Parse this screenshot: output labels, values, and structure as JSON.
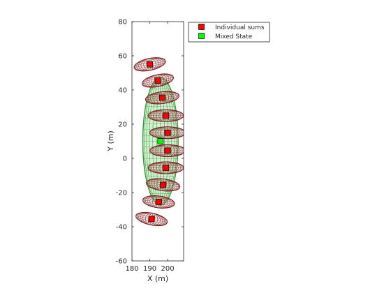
{
  "chart_data": {
    "type": "scatter",
    "title": "",
    "xlabel": "X (m)",
    "ylabel": "Y (m)",
    "xlim": [
      180,
      209
    ],
    "ylim": [
      -60,
      80
    ],
    "xticks": [
      180,
      190,
      200
    ],
    "yticks": [
      -60,
      -40,
      -20,
      0,
      20,
      40,
      60,
      80
    ],
    "grid": false,
    "legend_position": "top-right (outside)",
    "series": [
      {
        "name": "Individual sums",
        "marker": "square",
        "color": "#ff0000",
        "ellipse_edge_color": "#7a1e1e",
        "points": [
          {
            "x": 190.0,
            "y": 55.0,
            "rx": 9.0,
            "ry": 3.5
          },
          {
            "x": 194.5,
            "y": 45.5,
            "rx": 9.0,
            "ry": 3.5
          },
          {
            "x": 197.0,
            "y": 35.5,
            "rx": 9.5,
            "ry": 3.5
          },
          {
            "x": 199.0,
            "y": 25.0,
            "rx": 10.0,
            "ry": 3.5
          },
          {
            "x": 200.0,
            "y": 15.0,
            "rx": 10.0,
            "ry": 3.5
          },
          {
            "x": 200.0,
            "y": 4.5,
            "rx": 10.0,
            "ry": 3.5
          },
          {
            "x": 199.0,
            "y": -5.5,
            "rx": 10.0,
            "ry": 3.5
          },
          {
            "x": 197.5,
            "y": -15.5,
            "rx": 9.5,
            "ry": 3.5
          },
          {
            "x": 195.0,
            "y": -25.5,
            "rx": 9.0,
            "ry": 3.5
          },
          {
            "x": 191.0,
            "y": -35.5,
            "rx": 9.0,
            "ry": 3.5
          }
        ]
      },
      {
        "name": "Mixed State",
        "marker": "square",
        "color": "#00ff00",
        "ellipse_fill_color": "#c8f0c8",
        "ellipse_edge_color": "#2e8b2e",
        "points": [
          {
            "x": 196.0,
            "y": 10.0,
            "rx": 10.0,
            "ry": 37.5
          }
        ]
      }
    ]
  }
}
